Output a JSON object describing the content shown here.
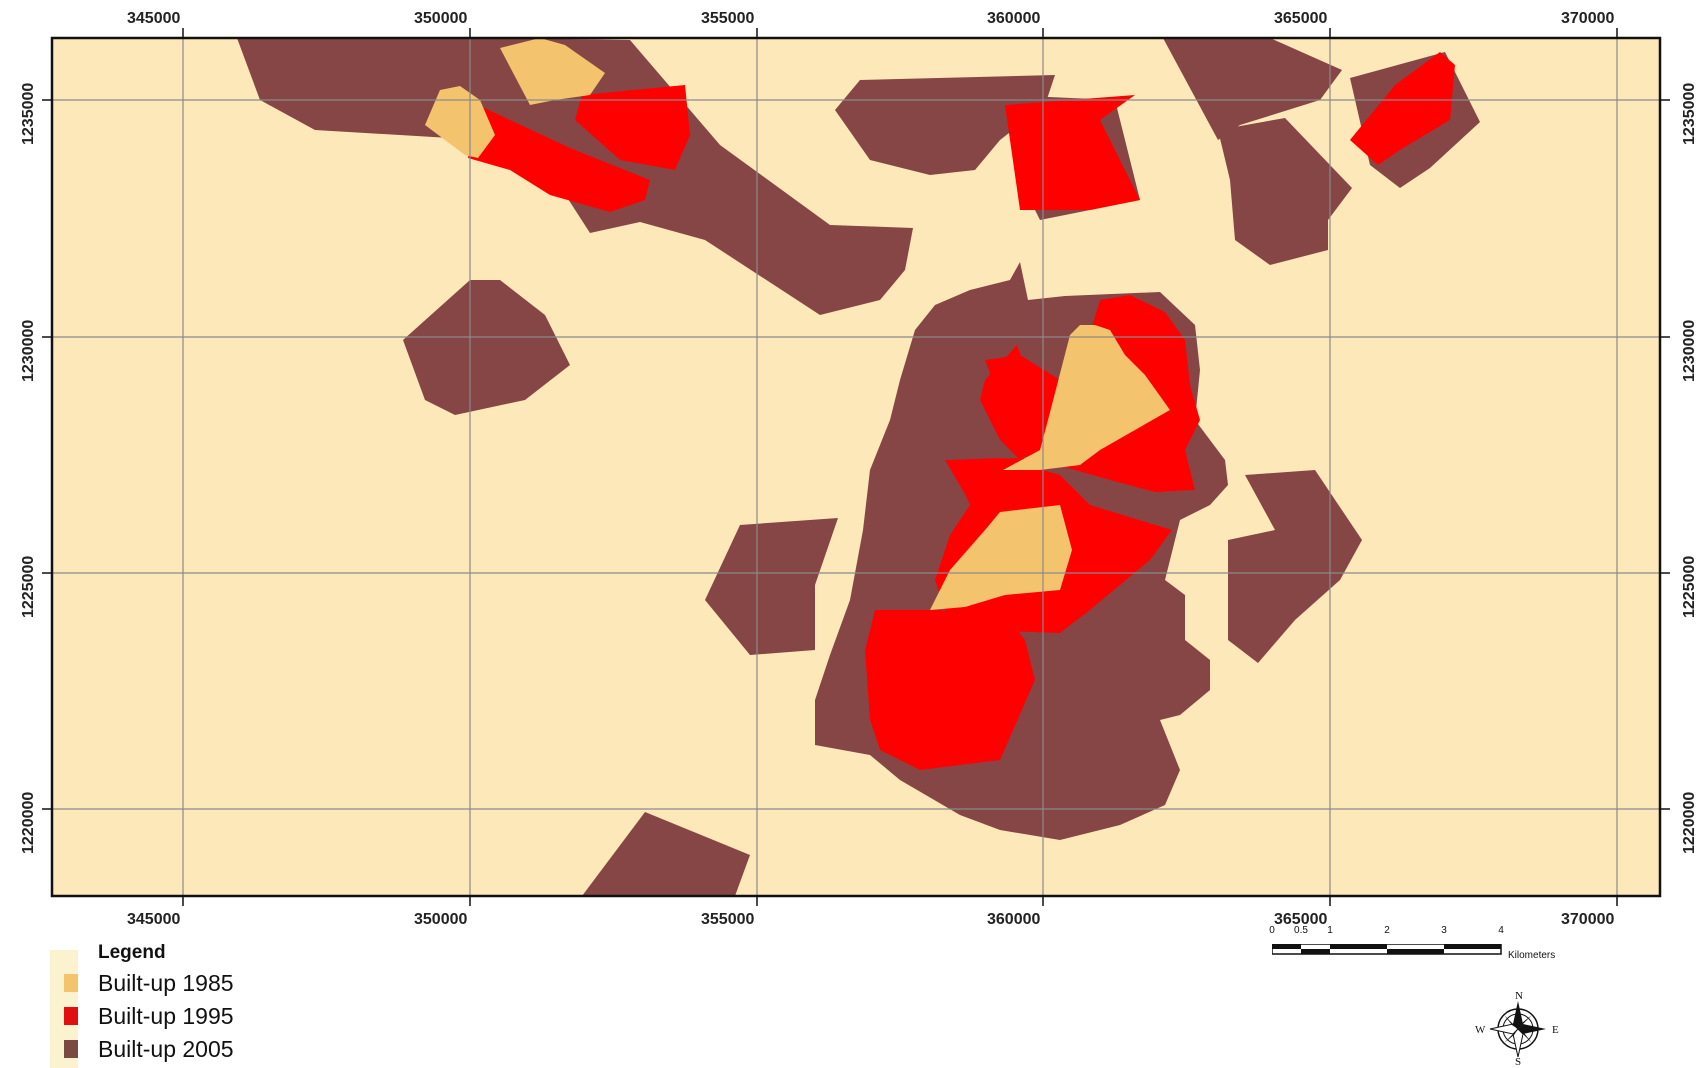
{
  "map": {
    "x_ticks": [
      "345000",
      "350000",
      "355000",
      "360000",
      "365000",
      "370000"
    ],
    "y_ticks": [
      "1235000",
      "1230000",
      "1225000",
      "1220000"
    ],
    "colors": {
      "background": "#fde8b9",
      "built_1985": "#f3c36e",
      "built_1995": "#ff0000",
      "built_2005": "#864646",
      "grid": "#8a8a8a",
      "frame": "#111111"
    }
  },
  "legend": {
    "title": "Legend",
    "items": [
      {
        "label": "Built-up 1985",
        "color": "#f3c36e"
      },
      {
        "label": "Built-up 1995",
        "color": "#e01010"
      },
      {
        "label": "Built-up 2005",
        "color": "#7a4a40"
      }
    ]
  },
  "scalebar": {
    "ticks": [
      "0",
      "0.5",
      "1",
      "2",
      "3",
      "4"
    ],
    "unit": "Kilometers"
  },
  "north_arrow": {
    "n": "N",
    "s": "S",
    "e": "E",
    "w": "W",
    "icon": "compass-rose-icon"
  }
}
